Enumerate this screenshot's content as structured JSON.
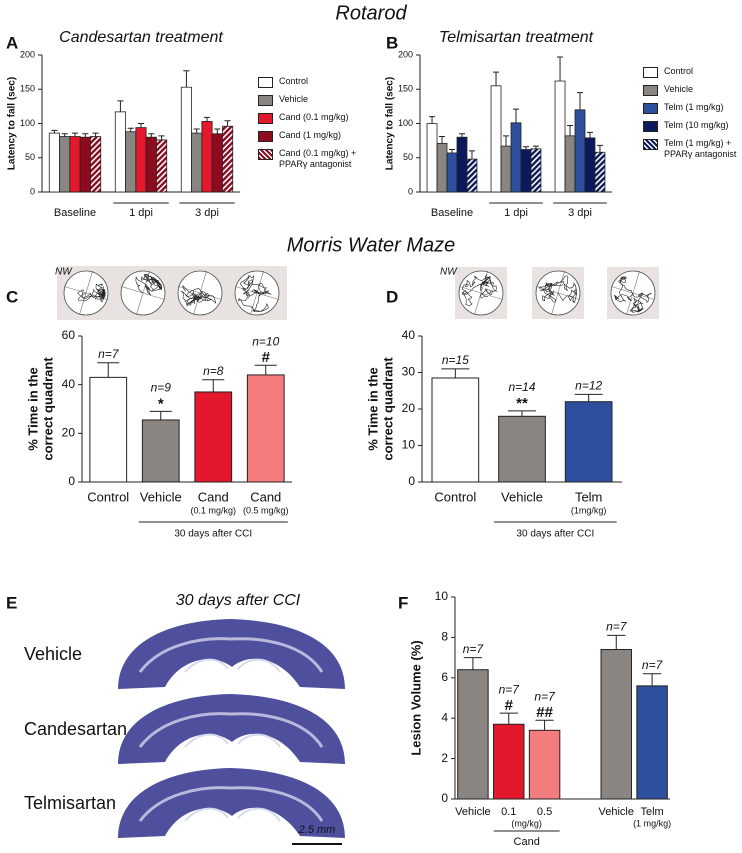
{
  "figure": {
    "titles": [
      "Rotarod",
      "Morris Water Maze"
    ]
  },
  "chart_data": [
    {
      "type": "bar",
      "panel": "A",
      "title": "Candesartan treatment",
      "ylabel": "Latency to fall (sec)",
      "categories": [
        "Baseline",
        "1 dpi",
        "3 dpi"
      ],
      "ylim": [
        0,
        200
      ],
      "yticks": [
        0,
        50,
        100,
        150,
        200
      ],
      "series": [
        {
          "name": "Control",
          "color": "#ffffff",
          "values": [
            86,
            117,
            153
          ],
          "errors": [
            4,
            16,
            24
          ]
        },
        {
          "name": "Vehicle",
          "color": "#8a8580",
          "values": [
            81,
            88,
            86
          ],
          "errors": [
            4,
            5,
            6
          ]
        },
        {
          "name": "Cand (0.1 mg/kg)",
          "color": "#e3182d",
          "values": [
            81,
            94,
            103
          ],
          "errors": [
            5,
            6,
            6
          ]
        },
        {
          "name": "Cand (1 mg/kg)",
          "color": "#8c0b1f",
          "values": [
            80,
            80,
            85
          ],
          "errors": [
            5,
            5,
            7
          ]
        },
        {
          "name": "Cand (0.1 mg/kg) + PPARγ antagonist",
          "color": "#8c0b1f",
          "hatch": true,
          "values": [
            81,
            76,
            96
          ],
          "errors": [
            5,
            6,
            8
          ]
        }
      ]
    },
    {
      "type": "bar",
      "panel": "B",
      "title": "Telmisartan treatment",
      "ylabel": "Latency to fall (sec)",
      "categories": [
        "Baseline",
        "1 dpi",
        "3 dpi"
      ],
      "ylim": [
        0,
        200
      ],
      "yticks": [
        0,
        50,
        100,
        150,
        200
      ],
      "series": [
        {
          "name": "Control",
          "color": "#ffffff",
          "values": [
            100,
            155,
            162
          ],
          "errors": [
            10,
            20,
            35
          ]
        },
        {
          "name": "Vehicle",
          "color": "#8a8580",
          "values": [
            71,
            67,
            82
          ],
          "errors": [
            10,
            15,
            15
          ]
        },
        {
          "name": "Telm (1 mg/kg)",
          "color": "#2d4f9e",
          "values": [
            57,
            101,
            120
          ],
          "errors": [
            5,
            20,
            25
          ]
        },
        {
          "name": "Telm (10 mg/kg)",
          "color": "#0c1a5c",
          "values": [
            80,
            62,
            79
          ],
          "errors": [
            5,
            4,
            8
          ]
        },
        {
          "name": "Telm (1 mg/kg) + PPARγ antagonist",
          "color": "#0c1a5c",
          "hatch": true,
          "values": [
            48,
            63,
            58
          ],
          "errors": [
            12,
            4,
            10
          ]
        }
      ]
    },
    {
      "type": "bar",
      "panel": "C",
      "maze_label": "NW",
      "ylabel": [
        "% Time in the",
        "correct quadrant"
      ],
      "categories": [
        "Control",
        "Vehicle",
        "Cand",
        "Cand"
      ],
      "category_sublabels": [
        null,
        null,
        "(0.1 mg/kg)",
        "(0.5 mg/kg)"
      ],
      "group_label": "30 days after CCI",
      "values": [
        43,
        25.5,
        37,
        44
      ],
      "errors": [
        6,
        3.5,
        5,
        4
      ],
      "colors": [
        "#ffffff",
        "#8a8580",
        "#e3182d",
        "#f47c7c"
      ],
      "annotations": [
        "n=7",
        "n=9",
        "n=8",
        "n=10"
      ],
      "significance": [
        null,
        "*",
        null,
        "#"
      ],
      "ylim": [
        0,
        60
      ],
      "yticks": [
        0,
        20,
        40,
        60
      ]
    },
    {
      "type": "bar",
      "panel": "D",
      "maze_label": "NW",
      "ylabel": [
        "% Time in the",
        "correct quadrant"
      ],
      "categories": [
        "Control",
        "Vehicle",
        "Telm"
      ],
      "category_sublabels": [
        null,
        null,
        "(1mg/kg)"
      ],
      "group_label": "30 days after CCI",
      "values": [
        28.5,
        18,
        22
      ],
      "errors": [
        2.5,
        1.5,
        2
      ],
      "colors": [
        "#ffffff",
        "#8a8580",
        "#2d4f9e"
      ],
      "annotations": [
        "n=15",
        "n=14",
        "n=12"
      ],
      "significance": [
        null,
        "**",
        null
      ],
      "ylim": [
        0,
        40
      ],
      "yticks": [
        0,
        10,
        20,
        30,
        40
      ]
    },
    {
      "type": "bar",
      "panel": "F",
      "ylabel": "Lesion Volume (%)",
      "categories": [
        "Vehicle",
        "0.1",
        "0.5",
        null,
        "Vehicle",
        "Telm"
      ],
      "category_sublabels": [
        null,
        null,
        null,
        null,
        null,
        "(1 mg/kg)"
      ],
      "group_unit": "(mg/kg)",
      "group_label": "Cand",
      "values": [
        6.4,
        3.7,
        3.4,
        null,
        7.4,
        5.6
      ],
      "errors": [
        0.6,
        0.55,
        0.5,
        null,
        0.7,
        0.6
      ],
      "colors": [
        "#8a8580",
        "#e3182d",
        "#f47c7c",
        null,
        "#8a8580",
        "#2d4f9e"
      ],
      "annotations": [
        "n=7",
        "n=7",
        "n=7",
        null,
        "n=7",
        "n=7"
      ],
      "significance": [
        null,
        "#",
        "##",
        null,
        null,
        null
      ],
      "ylim": [
        0,
        10
      ],
      "yticks": [
        0,
        2,
        4,
        6,
        8,
        10
      ]
    }
  ],
  "panel_e": {
    "panel": "E",
    "title": "30 days after CCI",
    "labels": [
      "Vehicle",
      "Candesartan",
      "Telmisartan"
    ],
    "scale_bar": "2.5 mm"
  }
}
